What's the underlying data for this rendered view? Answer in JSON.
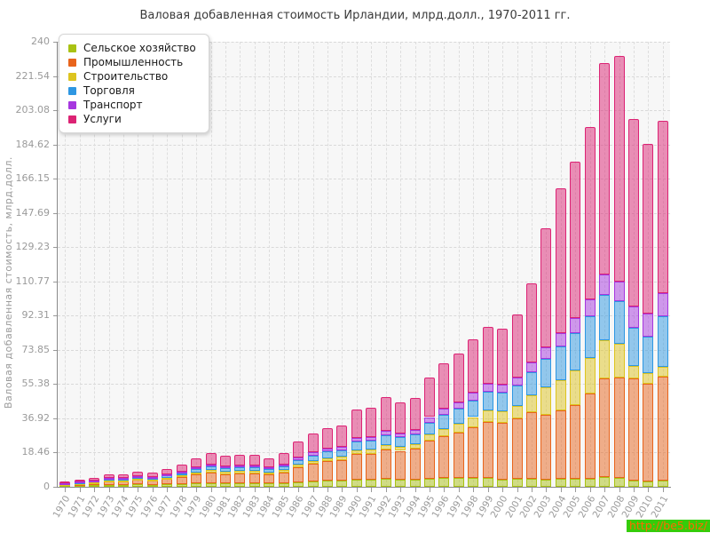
{
  "title": "Валовая добавленная стоимость Ирландии, млрд.долл., 1970-2011 гг.",
  "watermark": "http://be5.biz/",
  "chart_data": {
    "type": "bar",
    "stacked": true,
    "title": "Валовая добавленная стоимость Ирландии, млрд.долл., 1970-2011 гг.",
    "xlabel": "",
    "ylabel": "Валовая добавленная стоимость, млрд.долл.",
    "ylim": [
      0,
      240
    ],
    "ytick_labels": [
      "0",
      "18.46",
      "36.92",
      "55.38",
      "73.85",
      "92.31",
      "110.77",
      "129.23",
      "147.69",
      "166.15",
      "184.62",
      "203.08",
      "221.54",
      "240"
    ],
    "grid": true,
    "legend_position": "top-left",
    "categories": [
      "1970",
      "1971",
      "1972",
      "1973",
      "1974",
      "1975",
      "1976",
      "1977",
      "1978",
      "1979",
      "1980",
      "1981",
      "1982",
      "1983",
      "1984",
      "1985",
      "1986",
      "1987",
      "1988",
      "1989",
      "1990",
      "1991",
      "1992",
      "1993",
      "1994",
      "1995",
      "1996",
      "1997",
      "1998",
      "1999",
      "2000",
      "2001",
      "2002",
      "2003",
      "2004",
      "2005",
      "2006",
      "2007",
      "2008",
      "2009",
      "2010",
      "2011"
    ],
    "series": [
      {
        "name": "Сельское хозяйство",
        "color": "#a9c213",
        "values": [
          0.5,
          0.6,
          0.8,
          1.1,
          0.9,
          1.2,
          1.1,
          1.4,
          1.6,
          1.9,
          2.0,
          1.7,
          1.8,
          1.8,
          1.7,
          1.9,
          2.5,
          3.0,
          3.3,
          3.3,
          4.0,
          3.8,
          4.2,
          3.9,
          4.0,
          4.5,
          4.8,
          4.9,
          4.8,
          4.6,
          4.0,
          4.2,
          4.4,
          3.6,
          4.2,
          4.3,
          4.5,
          5.4,
          4.8,
          3.2,
          2.8,
          3.3
        ]
      },
      {
        "name": "Промышленность",
        "color": "#e8641c",
        "values": [
          0.9,
          1.1,
          1.5,
          1.9,
          2.0,
          2.4,
          2.4,
          3.0,
          3.6,
          4.7,
          5.6,
          5.2,
          5.5,
          5.5,
          5.1,
          5.9,
          8.0,
          9.4,
          10.5,
          11.0,
          13.5,
          14.0,
          16.0,
          15.5,
          16.5,
          20.5,
          22.5,
          24.5,
          27.5,
          30.5,
          30.5,
          32.5,
          36.0,
          35.0,
          37.0,
          40.0,
          45.6,
          53.2,
          54.0,
          55.4,
          52.9,
          56.1
        ]
      },
      {
        "name": "Строительство",
        "color": "#ddc41f",
        "values": [
          0.2,
          0.25,
          0.3,
          0.45,
          0.45,
          0.5,
          0.5,
          0.6,
          0.8,
          1.1,
          1.4,
          1.3,
          1.3,
          1.2,
          1.0,
          1.1,
          1.4,
          1.5,
          1.7,
          1.8,
          2.3,
          2.3,
          2.5,
          2.3,
          2.5,
          3.1,
          3.8,
          4.5,
          5.3,
          6.2,
          6.3,
          7.0,
          9.0,
          15.0,
          16.5,
          18.5,
          19.5,
          20.3,
          18.4,
          6.7,
          5.6,
          5.4
        ]
      },
      {
        "name": "Торговля",
        "color": "#2e97e2",
        "values": [
          0.35,
          0.45,
          0.6,
          0.8,
          0.8,
          1.0,
          0.9,
          1.1,
          1.4,
          1.8,
          2.1,
          1.9,
          1.9,
          1.9,
          1.7,
          2.0,
          2.7,
          3.1,
          3.5,
          3.6,
          4.6,
          4.7,
          5.3,
          5.0,
          5.3,
          6.6,
          7.6,
          8.2,
          9.1,
          9.9,
          9.8,
          10.7,
          12.2,
          15.5,
          18.0,
          20.0,
          22.4,
          24.7,
          23.0,
          20.3,
          19.5,
          27.2
        ]
      },
      {
        "name": "Транспорт",
        "color": "#a637df",
        "values": [
          0.2,
          0.25,
          0.3,
          0.4,
          0.45,
          0.5,
          0.5,
          0.6,
          0.7,
          0.9,
          1.1,
          1.0,
          1.0,
          1.0,
          0.9,
          1.0,
          1.3,
          1.5,
          1.6,
          1.7,
          2.1,
          2.1,
          2.4,
          2.2,
          2.3,
          2.9,
          3.3,
          3.6,
          4.0,
          4.4,
          4.3,
          4.7,
          5.4,
          6.3,
          7.3,
          8.0,
          8.9,
          10.7,
          10.5,
          11.6,
          12.8,
          12.4
        ]
      },
      {
        "name": "Услуги",
        "color": "#dc2374",
        "values": [
          0.85,
          1.15,
          1.5,
          1.95,
          2.0,
          2.5,
          2.4,
          3.0,
          3.7,
          4.9,
          6.1,
          5.5,
          5.9,
          5.7,
          5.1,
          6.1,
          8.6,
          10.1,
          11.2,
          11.5,
          15.3,
          15.6,
          17.8,
          16.5,
          17.1,
          21.3,
          24.6,
          26.3,
          28.7,
          30.8,
          30.4,
          33.8,
          42.5,
          64.0,
          78.0,
          84.4,
          93.1,
          114.1,
          121.8,
          101.0,
          91.4,
          93.1
        ]
      }
    ]
  }
}
